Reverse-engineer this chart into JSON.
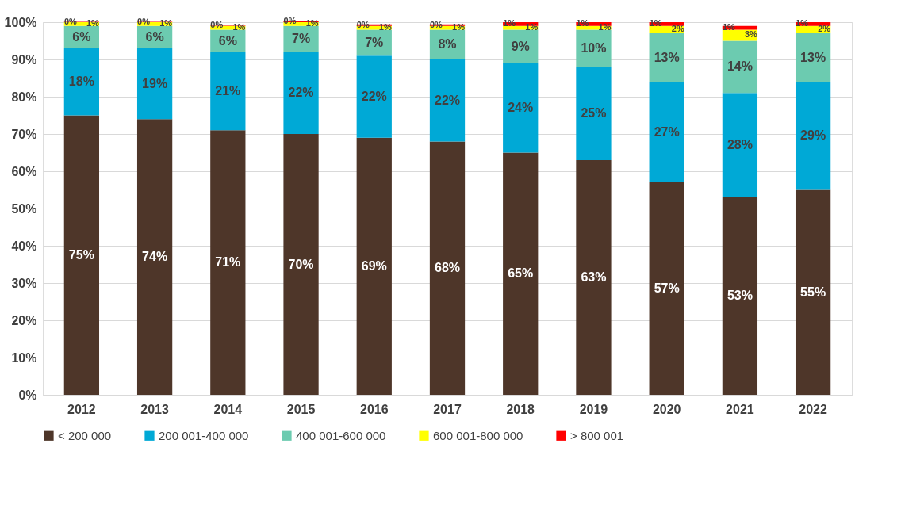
{
  "chart_data": {
    "type": "bar",
    "stacked": true,
    "grid": "y",
    "legend": "bottom",
    "categories": [
      "2012",
      "2013",
      "2014",
      "2015",
      "2016",
      "2017",
      "2018",
      "2019",
      "2020",
      "2021",
      "2022"
    ],
    "ylim": [
      0,
      100
    ],
    "yticks": [
      {
        "value": 0,
        "label": "0%"
      },
      {
        "value": 10,
        "label": "10%"
      },
      {
        "value": 20,
        "label": "20%"
      },
      {
        "value": 30,
        "label": "30%"
      },
      {
        "value": 40,
        "label": "40%"
      },
      {
        "value": 50,
        "label": "50%"
      },
      {
        "value": 60,
        "label": "60%"
      },
      {
        "value": 70,
        "label": "70%"
      },
      {
        "value": 80,
        "label": "80%"
      },
      {
        "value": 90,
        "label": "90%"
      },
      {
        "value": 100,
        "label": "100%"
      }
    ],
    "series": [
      {
        "name": "< 200 000",
        "color": "#4e3629",
        "values": [
          75,
          74,
          71,
          70,
          69,
          68,
          65,
          63,
          57,
          53,
          55
        ],
        "value_labels": [
          "75%",
          "74%",
          "71%",
          "70%",
          "69%",
          "68%",
          "65%",
          "63%",
          "57%",
          "53%",
          "55%"
        ]
      },
      {
        "name": "200 001-400 000",
        "color": "#00a9d6",
        "values": [
          18,
          19,
          21,
          22,
          22,
          22,
          24,
          25,
          27,
          28,
          29
        ],
        "value_labels": [
          "18%",
          "19%",
          "21%",
          "22%",
          "22%",
          "22%",
          "24%",
          "25%",
          "27%",
          "28%",
          "29%"
        ]
      },
      {
        "name": "400 001-600 000",
        "color": "#6ccbb0",
        "values": [
          6,
          6,
          6,
          7,
          7,
          8,
          9,
          10,
          13,
          14,
          13
        ],
        "value_labels": [
          "6%",
          "6%",
          "6%",
          "7%",
          "7%",
          "8%",
          "9%",
          "10%",
          "13%",
          "14%",
          "13%"
        ]
      },
      {
        "name": "600 001-800 000",
        "color": "#ffff00",
        "values": [
          1,
          1,
          1,
          1,
          1,
          1,
          1,
          1,
          2,
          3,
          2
        ],
        "value_labels": [
          "1%",
          "1%",
          "1%",
          "1%",
          "1%",
          "1%",
          "1%",
          "1%",
          "2%",
          "3%",
          "2%"
        ]
      },
      {
        "name": "> 800 001",
        "color": "#ff0000",
        "values": [
          0.1,
          0.1,
          0.1,
          0.4,
          0.4,
          0.4,
          1,
          1,
          1,
          1,
          1
        ],
        "value_labels": [
          "0%",
          "0%",
          "0%",
          "0%",
          "0%",
          "0%",
          "1%",
          "1%",
          "1%",
          "1%",
          "1%"
        ]
      }
    ]
  }
}
